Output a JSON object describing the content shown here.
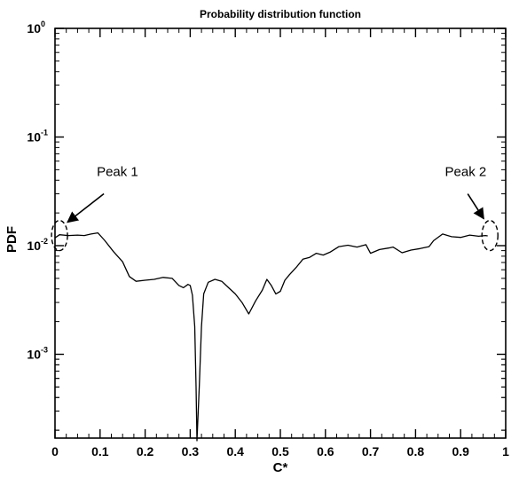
{
  "chart_data": {
    "type": "line",
    "title": "Probability distribution function",
    "xlabel": "C*",
    "ylabel": "PDF",
    "y_scale": "log",
    "xlim": [
      0,
      1
    ],
    "ylim": [
      0.00015,
      1
    ],
    "grid": false,
    "legend": "none",
    "x_ticks": [
      "0",
      "0.1",
      "0.2",
      "0.3",
      "0.4",
      "0.5",
      "0.6",
      "0.7",
      "0.8",
      "0.9",
      "1"
    ],
    "y_ticks": [
      {
        "base": "10",
        "exp": "0",
        "value": 1
      },
      {
        "base": "10",
        "exp": "-1",
        "value": 0.1
      },
      {
        "base": "10",
        "exp": "-2",
        "value": 0.01
      },
      {
        "base": "10",
        "exp": "-3",
        "value": 0.001
      }
    ],
    "series": [
      {
        "color": "#000000",
        "x": [
          0.0,
          0.01,
          0.03,
          0.05,
          0.065,
          0.08,
          0.095,
          0.11,
          0.13,
          0.15,
          0.165,
          0.18,
          0.2,
          0.22,
          0.24,
          0.26,
          0.275,
          0.285,
          0.295,
          0.3,
          0.305,
          0.31,
          0.313,
          0.315,
          0.32,
          0.325,
          0.33,
          0.34,
          0.355,
          0.37,
          0.385,
          0.4,
          0.415,
          0.43,
          0.445,
          0.46,
          0.47,
          0.48,
          0.49,
          0.5,
          0.51,
          0.52,
          0.535,
          0.55,
          0.565,
          0.58,
          0.595,
          0.61,
          0.63,
          0.65,
          0.67,
          0.69,
          0.7,
          0.72,
          0.74,
          0.75,
          0.77,
          0.79,
          0.81,
          0.83,
          0.84,
          0.86,
          0.88,
          0.9,
          0.92,
          0.94,
          0.955,
          0.96
        ],
        "y": [
          0.0118,
          0.0126,
          0.0124,
          0.0125,
          0.0124,
          0.0128,
          0.0131,
          0.0112,
          0.0088,
          0.0071,
          0.0052,
          0.0047,
          0.0048,
          0.0049,
          0.0051,
          0.005,
          0.0043,
          0.0041,
          0.0044,
          0.0043,
          0.0035,
          0.0018,
          0.0005,
          0.00016,
          0.0005,
          0.0018,
          0.0036,
          0.0046,
          0.0049,
          0.0047,
          0.0041,
          0.0036,
          0.003,
          0.00235,
          0.0031,
          0.0039,
          0.0049,
          0.0043,
          0.0036,
          0.0038,
          0.0048,
          0.0054,
          0.0063,
          0.0075,
          0.0078,
          0.0085,
          0.0082,
          0.0087,
          0.0098,
          0.0101,
          0.0097,
          0.0102,
          0.0085,
          0.0092,
          0.0095,
          0.0097,
          0.0086,
          0.0091,
          0.0094,
          0.0098,
          0.0111,
          0.0128,
          0.0121,
          0.0119,
          0.0125,
          0.0122,
          0.0124,
          0.0123
        ]
      }
    ],
    "annotations": [
      {
        "label": "Peak 1",
        "x": 0.01,
        "y": 0.0124
      },
      {
        "label": "Peak 2",
        "x": 0.965,
        "y": 0.0124
      }
    ]
  }
}
